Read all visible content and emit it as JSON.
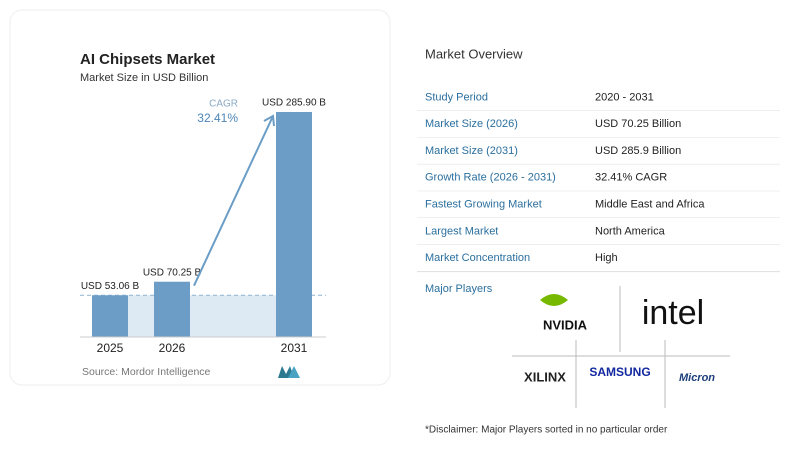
{
  "chart_data": {
    "type": "bar",
    "title": "AI Chipsets Market",
    "subtitle": "Market Size in USD Billion",
    "categories": [
      "2025",
      "2026",
      "2031"
    ],
    "values": [
      53.06,
      70.25,
      285.9
    ],
    "value_labels": [
      "USD 53.06 B",
      "USD 70.25 B",
      "USD 285.90 B"
    ],
    "color": "#6b9dc6",
    "annotation": {
      "label": "CAGR",
      "value": "32.41%"
    },
    "source": "Source: Mordor Intelligence"
  },
  "overview": {
    "title": "Market Overview",
    "rows": [
      [
        "Study Period",
        "2020 - 2031"
      ],
      [
        "Market Size (2026)",
        "USD 70.25 Billion"
      ],
      [
        "Market Size (2031)",
        "USD 285.9 Billion"
      ],
      [
        "Growth Rate (2026 - 2031)",
        "32.41% CAGR"
      ],
      [
        "Fastest Growing Market",
        "Middle East and Africa"
      ],
      [
        "Largest Market",
        "North America"
      ],
      [
        "Market Concentration",
        "High"
      ]
    ],
    "players_title": "Major Players",
    "players": [
      "NVIDIA",
      "intel",
      "XILINX",
      "SAMSUNG",
      "Micron"
    ],
    "disclaimer": "*Disclaimer: Major Players sorted in no particular order"
  }
}
